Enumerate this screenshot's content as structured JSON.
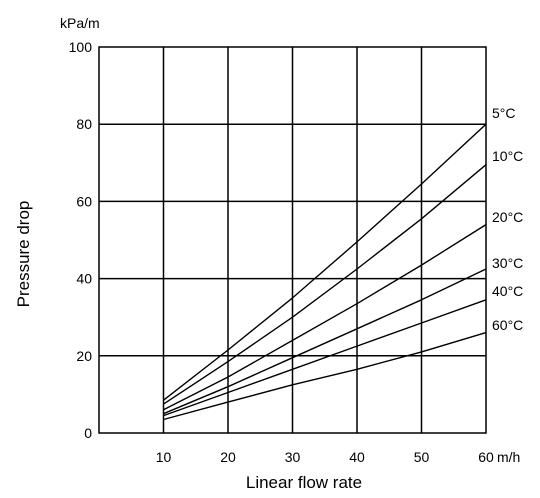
{
  "chart_data": {
    "type": "line",
    "title": "",
    "xlabel": "Linear flow rate",
    "ylabel": "Pressure drop",
    "x_unit": "m/h",
    "y_unit": "kPa/m",
    "xlim": [
      0,
      60
    ],
    "ylim": [
      0,
      100
    ],
    "x_ticks": [
      10,
      20,
      30,
      40,
      50,
      60
    ],
    "y_ticks": [
      0,
      20,
      40,
      60,
      80,
      100
    ],
    "grid": true,
    "legend": "inline-right",
    "x": [
      10,
      20,
      30,
      40,
      50,
      60
    ],
    "series": [
      {
        "name": "5°C",
        "values": [
          8.5,
          21.5,
          35,
          49.5,
          64.5,
          80
        ]
      },
      {
        "name": "10°C",
        "values": [
          7.5,
          18.5,
          30,
          42.5,
          55.5,
          69.5
        ]
      },
      {
        "name": "20°C",
        "values": [
          6,
          14.5,
          24,
          33.5,
          43.5,
          54
        ]
      },
      {
        "name": "30°C",
        "values": [
          5,
          12,
          19.5,
          27,
          34.5,
          42.5
        ]
      },
      {
        "name": "40°C",
        "values": [
          4.5,
          10.5,
          16.5,
          22.5,
          28.5,
          34.5
        ]
      },
      {
        "name": "60°C",
        "values": [
          3.5,
          8,
          12.5,
          16.5,
          21,
          26
        ]
      }
    ]
  }
}
